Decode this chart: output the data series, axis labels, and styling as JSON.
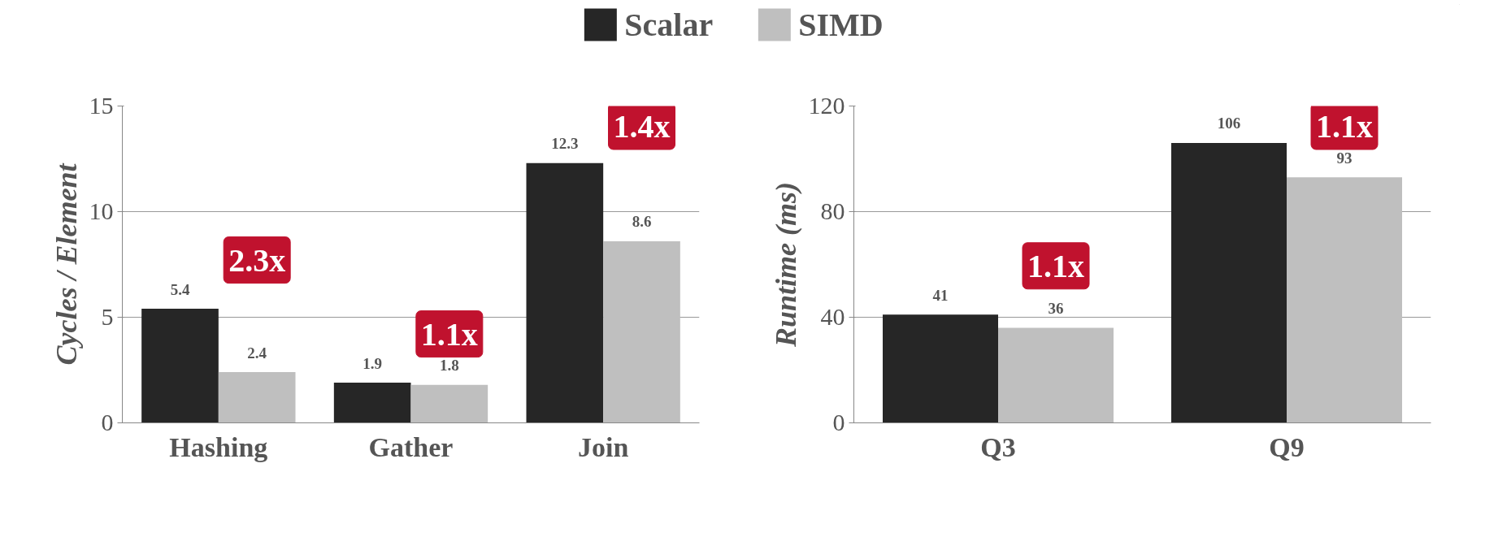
{
  "chart_data": [
    {
      "type": "bar",
      "categories": [
        "Hashing",
        "Gather",
        "Join"
      ],
      "ylabel": "Cycles / Element",
      "ylim": [
        0,
        15
      ],
      "yticks": [
        0,
        5,
        10,
        15
      ],
      "grid": "y",
      "legend": "top",
      "data_labels": true,
      "series": [
        {
          "name": "Scalar",
          "color": "#262626",
          "values": [
            5.4,
            1.9,
            12.3
          ]
        },
        {
          "name": "SIMD",
          "color": "#bfbfbf",
          "values": [
            2.4,
            1.8,
            8.6
          ]
        }
      ],
      "annotations": [
        "2.3x",
        "1.1x",
        "1.4x"
      ]
    },
    {
      "type": "bar",
      "categories": [
        "Q3",
        "Q9"
      ],
      "ylabel": "Runtime (ms)",
      "ylim": [
        0,
        120
      ],
      "yticks": [
        0,
        40,
        80,
        120
      ],
      "grid": "y",
      "data_labels": true,
      "series": [
        {
          "color": "#262626",
          "values": [
            41,
            106
          ]
        },
        {
          "color": "#bfbfbf",
          "values": [
            36,
            93
          ]
        }
      ],
      "annotations": [
        "1.1x",
        "1.1x"
      ]
    }
  ]
}
